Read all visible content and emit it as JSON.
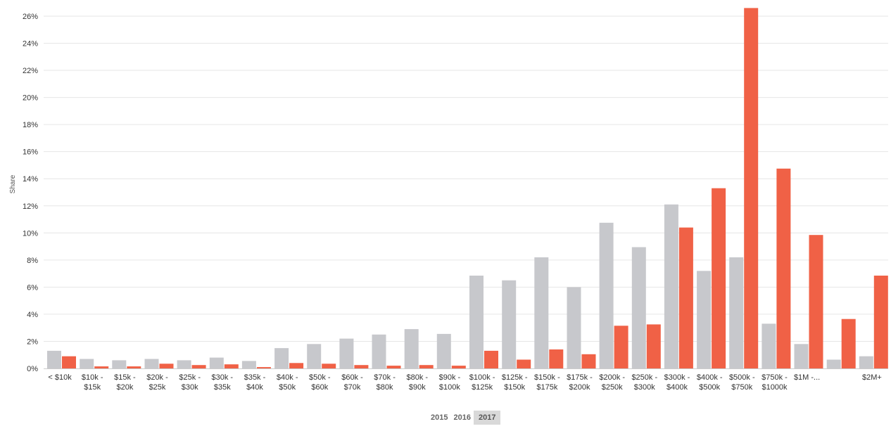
{
  "chart_data": {
    "type": "bar",
    "ylabel": "Share",
    "ylim": [
      0,
      27
    ],
    "yticks": [
      "0%",
      "2%",
      "4%",
      "6%",
      "8%",
      "10%",
      "12%",
      "14%",
      "16%",
      "18%",
      "20%",
      "22%",
      "24%",
      "26%"
    ],
    "categories": [
      [
        "< $10k"
      ],
      [
        "$10k -",
        "$15k"
      ],
      [
        "$15k -",
        "$20k"
      ],
      [
        "$20k -",
        "$25k"
      ],
      [
        "$25k -",
        "$30k"
      ],
      [
        "$30k -",
        "$35k"
      ],
      [
        "$35k -",
        "$40k"
      ],
      [
        "$40k -",
        "$50k"
      ],
      [
        "$50k -",
        "$60k"
      ],
      [
        "$60k -",
        "$70k"
      ],
      [
        "$70k -",
        "$80k"
      ],
      [
        "$80k -",
        "$90k"
      ],
      [
        "$90k -",
        "$100k"
      ],
      [
        "$100k -",
        "$125k"
      ],
      [
        "$125k -",
        "$150k"
      ],
      [
        "$150k -",
        "$175k"
      ],
      [
        "$175k -",
        "$200k"
      ],
      [
        "$200k -",
        "$250k"
      ],
      [
        "$250k -",
        "$300k"
      ],
      [
        "$300k -",
        "$400k"
      ],
      [
        "$400k -",
        "$500k"
      ],
      [
        "$500k -",
        "$750k"
      ],
      [
        "$750k -",
        "$1000k"
      ],
      [
        "$1M -..."
      ],
      [
        ""
      ],
      [
        "$2M+"
      ]
    ],
    "series": [
      {
        "color": "#c7c8cc",
        "values": [
          1.3,
          0.7,
          0.6,
          0.7,
          0.6,
          0.8,
          0.55,
          1.5,
          1.8,
          2.2,
          2.5,
          2.9,
          2.55,
          6.85,
          6.5,
          8.2,
          6.0,
          10.75,
          8.95,
          12.1,
          7.2,
          8.2,
          3.3,
          1.8,
          0.65,
          0.9
        ]
      },
      {
        "color": "#f06146",
        "values": [
          0.9,
          0.15,
          0.15,
          0.35,
          0.25,
          0.3,
          0.1,
          0.4,
          0.35,
          0.25,
          0.2,
          0.25,
          0.2,
          1.3,
          0.65,
          1.4,
          1.05,
          3.15,
          3.25,
          10.4,
          13.3,
          26.6,
          14.75,
          9.85,
          3.65,
          6.85
        ]
      }
    ]
  },
  "years": {
    "items": [
      "2015",
      "2016",
      "2017"
    ],
    "selected": "2017"
  }
}
